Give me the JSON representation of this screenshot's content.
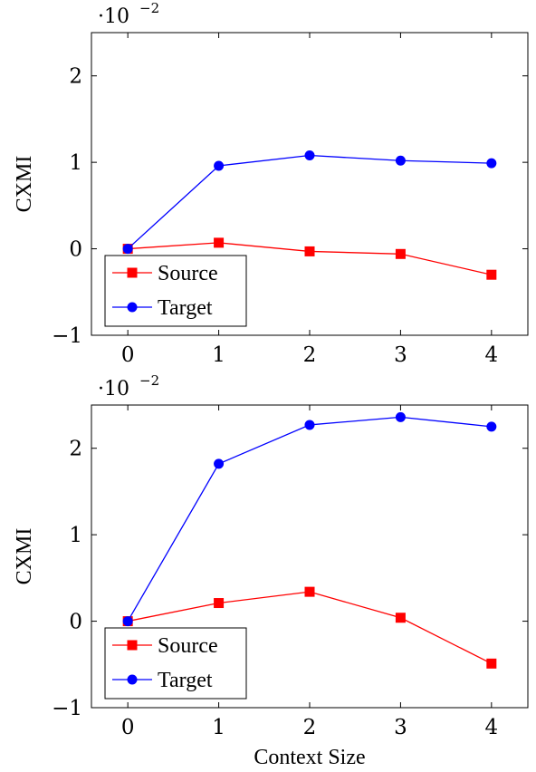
{
  "chart_data": [
    {
      "type": "line",
      "x": [
        0,
        1,
        2,
        3,
        4
      ],
      "xlabel": "",
      "ylabel": "CXMI",
      "y_scale_base": "·10",
      "y_scale_exponent": "−2",
      "xlim": [
        -0.4,
        4.4
      ],
      "ylim": [
        -1,
        2.5
      ],
      "xticks": [
        "0",
        "1",
        "2",
        "3",
        "4"
      ],
      "yticks": [
        "−1",
        "0",
        "1",
        "2"
      ],
      "ytick_values": [
        -1,
        0,
        1,
        2
      ],
      "legend_position": "bottom-left",
      "series": [
        {
          "name": "Source",
          "color": "#ff0000",
          "marker": "square",
          "values": [
            0.0,
            0.07,
            -0.03,
            -0.06,
            -0.3
          ]
        },
        {
          "name": "Target",
          "color": "#0000ff",
          "marker": "circle",
          "values": [
            0.0,
            0.96,
            1.08,
            1.02,
            0.99
          ]
        }
      ]
    },
    {
      "type": "line",
      "x": [
        0,
        1,
        2,
        3,
        4
      ],
      "xlabel": "Context Size",
      "ylabel": "CXMI",
      "y_scale_base": "·10",
      "y_scale_exponent": "−2",
      "xlim": [
        -0.4,
        4.4
      ],
      "ylim": [
        -1,
        2.5
      ],
      "xticks": [
        "0",
        "1",
        "2",
        "3",
        "4"
      ],
      "yticks": [
        "−1",
        "0",
        "1",
        "2"
      ],
      "ytick_values": [
        -1,
        0,
        1,
        2
      ],
      "legend_position": "bottom-left",
      "series": [
        {
          "name": "Source",
          "color": "#ff0000",
          "marker": "square",
          "values": [
            0.0,
            0.21,
            0.34,
            0.04,
            -0.49
          ]
        },
        {
          "name": "Target",
          "color": "#0000ff",
          "marker": "circle",
          "values": [
            0.0,
            1.82,
            2.27,
            2.36,
            2.25
          ]
        }
      ]
    }
  ]
}
